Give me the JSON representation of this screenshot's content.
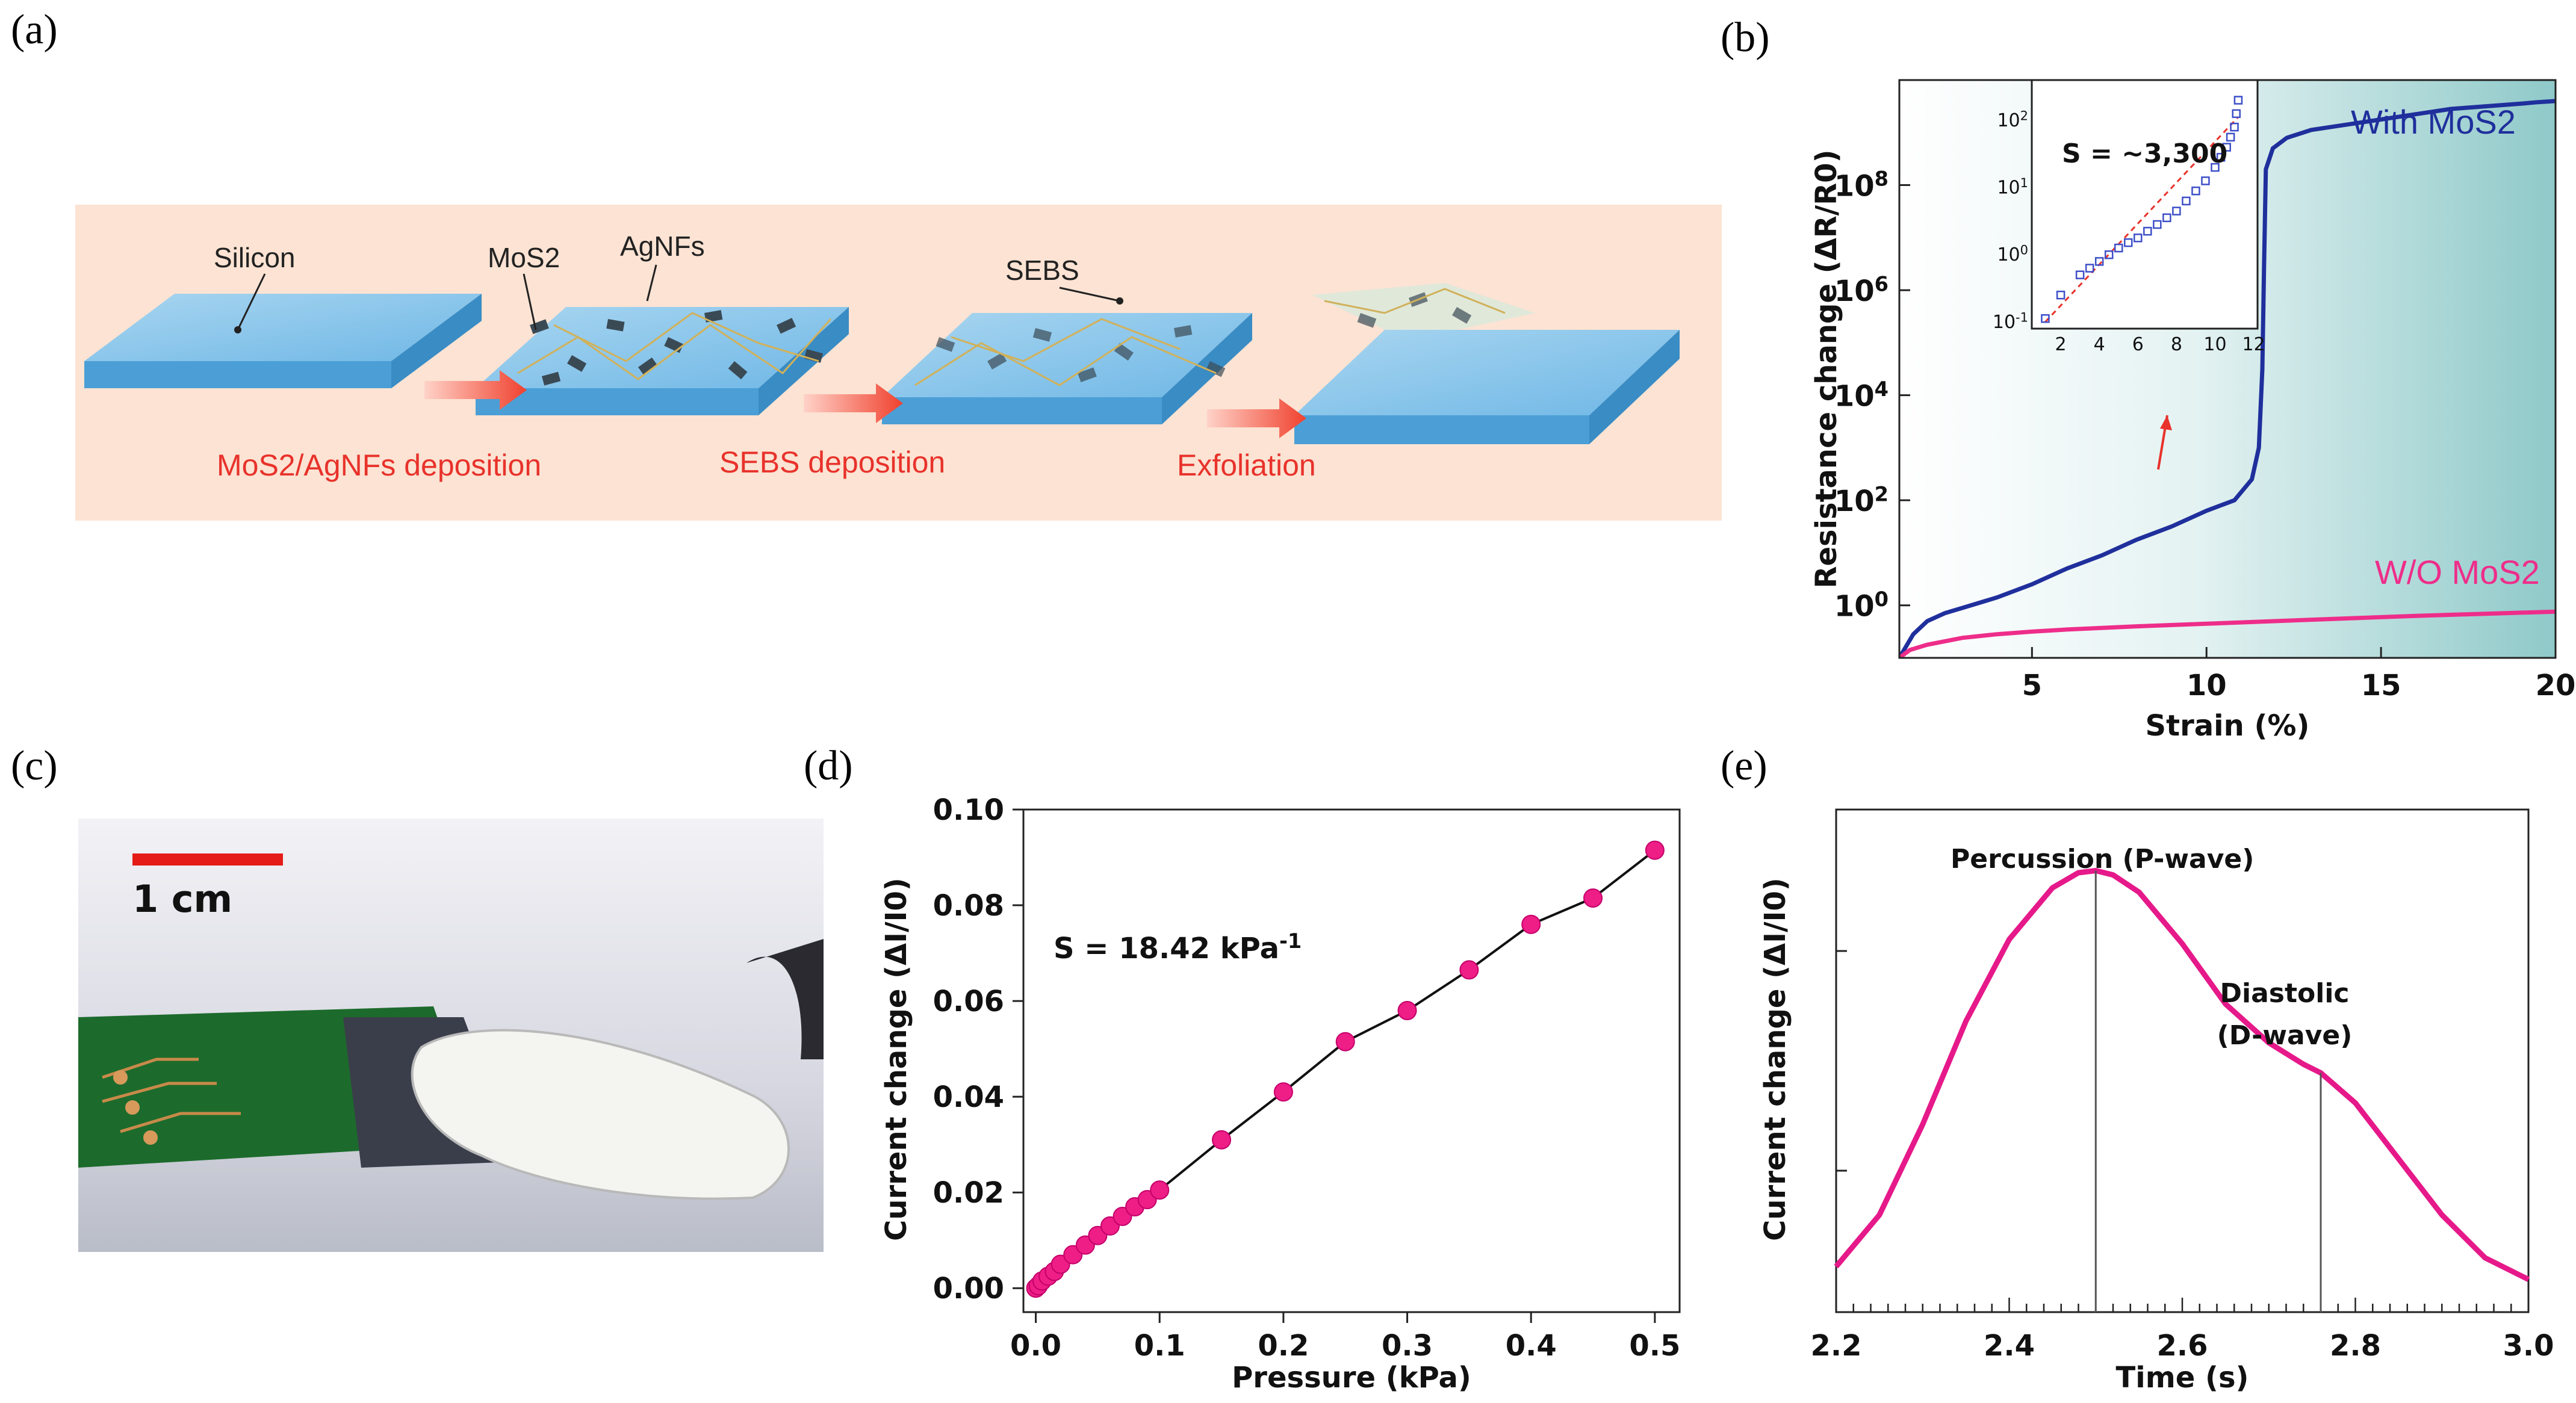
{
  "panels": {
    "a": {
      "label": "(a)",
      "notes": [
        "Silicon",
        "MoS2",
        "AgNFs",
        "SEBS"
      ],
      "steps": [
        "MoS2/AgNFs deposition",
        "SEBS deposition",
        "Exfoliation"
      ]
    },
    "b": {
      "label": "(b)"
    },
    "c": {
      "label": "(c)",
      "scale_bar": "1 cm"
    },
    "d": {
      "label": "(d)"
    },
    "e": {
      "label": "(e)"
    }
  },
  "chart_data": [
    {
      "panel": "b",
      "type": "line",
      "xlabel": "Strain (%)",
      "ylabel": "Resistance change (ΔR/R0)",
      "xlim": [
        1.2,
        20
      ],
      "ylim_log10": [
        -1,
        10
      ],
      "x_ticks": [
        5,
        10,
        15,
        20
      ],
      "x_tick_labels": [
        "5",
        "10",
        "15",
        "20"
      ],
      "y_tick_labels": [
        "10^0",
        "10^2",
        "10^4",
        "10^6",
        "10^8"
      ],
      "series": [
        {
          "name": "With MoS2",
          "color": "#1f2f9c",
          "x": [
            1.2,
            1.6,
            2,
            2.5,
            3,
            4,
            5,
            6,
            7,
            8,
            9,
            10,
            10.8,
            11.3,
            11.5,
            11.6,
            11.65,
            11.7,
            11.9,
            12.3,
            13,
            14,
            15,
            16,
            17,
            18,
            19,
            19.5,
            20
          ],
          "log10y": [
            -1.0,
            -0.55,
            -0.3,
            -0.15,
            -0.05,
            0.15,
            0.4,
            0.7,
            0.95,
            1.25,
            1.5,
            1.8,
            2.0,
            2.4,
            3.0,
            4.5,
            6.5,
            8.3,
            8.7,
            8.9,
            9.05,
            9.15,
            9.25,
            9.35,
            9.45,
            9.5,
            9.55,
            9.58,
            9.6
          ]
        },
        {
          "name": "W/O MoS2",
          "color": "#ee2d8a",
          "x": [
            1.2,
            1.5,
            2,
            3,
            4,
            5,
            6,
            8,
            10,
            12,
            14,
            16,
            18,
            20
          ],
          "log10y": [
            -1.0,
            -0.85,
            -0.75,
            -0.62,
            -0.55,
            -0.5,
            -0.46,
            -0.4,
            -0.35,
            -0.3,
            -0.25,
            -0.2,
            -0.16,
            -0.12
          ]
        }
      ],
      "inset": {
        "annotation": "S = ~3,300",
        "x_tick_labels": [
          "2",
          "4",
          "6",
          "8",
          "10",
          "12"
        ],
        "y_tick_labels": [
          "10^-1",
          "10^0",
          "10^1",
          "10^2"
        ],
        "data": {
          "x": [
            1.2,
            2,
            3,
            3.5,
            4,
            4.5,
            5,
            5.5,
            6,
            6.5,
            7,
            7.5,
            8,
            8.5,
            9,
            9.5,
            10,
            10.3,
            10.6,
            10.8,
            11,
            11.1,
            11.2
          ],
          "log10y": [
            -0.95,
            -0.6,
            -0.3,
            -0.2,
            -0.1,
            0.0,
            0.1,
            0.18,
            0.25,
            0.35,
            0.45,
            0.55,
            0.65,
            0.8,
            0.95,
            1.1,
            1.3,
            1.45,
            1.6,
            1.75,
            1.9,
            2.1,
            2.3
          ]
        },
        "fit": {
          "x": [
            1.2,
            11.2
          ],
          "log10y": [
            -1.0,
            2.05
          ]
        }
      }
    },
    {
      "panel": "d",
      "type": "scatter",
      "xlabel": "Pressure (kPa)",
      "ylabel": "Current change (ΔI/I0)",
      "xlim": [
        -0.01,
        0.52
      ],
      "ylim": [
        -0.005,
        0.1
      ],
      "x_tick_labels": [
        "0.0",
        "0.1",
        "0.2",
        "0.3",
        "0.4",
        "0.5"
      ],
      "y_tick_labels": [
        "0.00",
        "0.02",
        "0.04",
        "0.06",
        "0.08",
        "0.10"
      ],
      "annotation": "S = 18.42 kPa-1",
      "color": "#ee1e86",
      "x": [
        0,
        0.002,
        0.005,
        0.01,
        0.015,
        0.02,
        0.03,
        0.04,
        0.05,
        0.06,
        0.07,
        0.08,
        0.09,
        0.1,
        0.15,
        0.2,
        0.25,
        0.3,
        0.35,
        0.4,
        0.45,
        0.5
      ],
      "y": [
        0.0,
        0.0005,
        0.0015,
        0.0025,
        0.0035,
        0.005,
        0.007,
        0.009,
        0.011,
        0.013,
        0.015,
        0.017,
        0.0185,
        0.0205,
        0.031,
        0.041,
        0.0515,
        0.058,
        0.0665,
        0.076,
        0.0815,
        0.0915
      ]
    },
    {
      "panel": "e",
      "type": "line",
      "xlabel": "Time (s)",
      "ylabel": "Current change (ΔI/I0)",
      "xlim": [
        2.2,
        3.0
      ],
      "ylim": [
        0,
        1
      ],
      "x_tick_labels": [
        "2.2",
        "2.4",
        "2.6",
        "2.8",
        "3.0"
      ],
      "color": "#e6198a",
      "annotations": [
        "Percussion (P-wave)",
        "Diastolic",
        "(D-wave)"
      ],
      "markers_x": [
        2.5,
        2.76
      ],
      "x": [
        2.2,
        2.25,
        2.3,
        2.35,
        2.4,
        2.45,
        2.48,
        2.5,
        2.52,
        2.55,
        2.6,
        2.65,
        2.7,
        2.74,
        2.76,
        2.8,
        2.85,
        2.9,
        2.95,
        3.0
      ],
      "y": [
        0.05,
        0.17,
        0.38,
        0.62,
        0.81,
        0.93,
        0.965,
        0.97,
        0.96,
        0.92,
        0.8,
        0.66,
        0.57,
        0.52,
        0.5,
        0.43,
        0.3,
        0.17,
        0.07,
        0.02
      ]
    }
  ]
}
